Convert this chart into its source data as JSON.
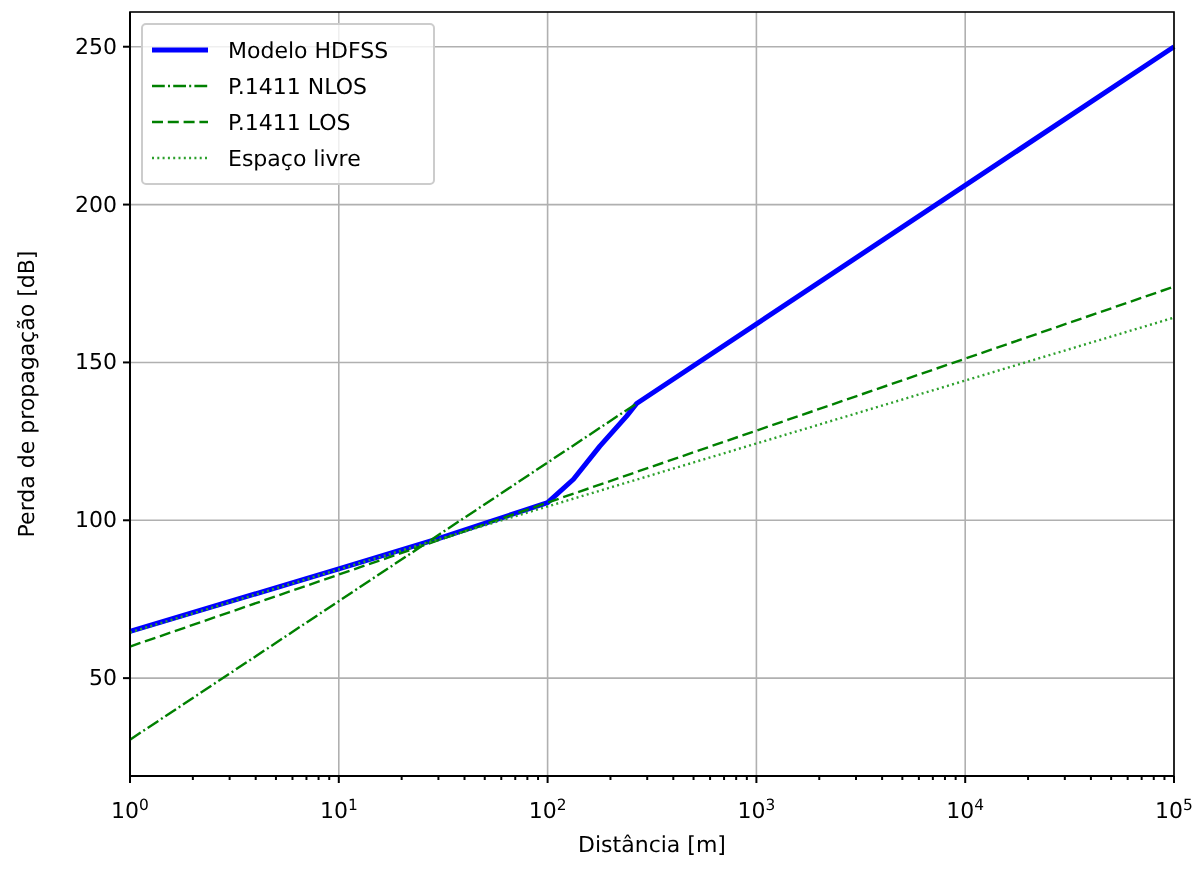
{
  "chart_data": {
    "type": "line",
    "xlabel": "Distância [m]",
    "ylabel": "Perda de propagação [dB]",
    "log": "x",
    "xlim": [
      1,
      100000
    ],
    "ylim": [
      19,
      261
    ],
    "xticks": [
      {
        "value": 1,
        "label": "10$^{0}$"
      },
      {
        "value": 2,
        "label": null
      },
      {
        "value": 3,
        "label": null
      },
      {
        "value": 4,
        "label": null
      },
      {
        "value": 5,
        "label": null
      },
      {
        "value": 6,
        "label": null
      },
      {
        "value": 7,
        "label": null
      },
      {
        "value": 8,
        "label": null
      },
      {
        "value": 9,
        "label": null
      },
      {
        "value": 10,
        "label": "10$^{1}$"
      },
      {
        "value": 20,
        "label": null
      },
      {
        "value": 30,
        "label": null
      },
      {
        "value": 40,
        "label": null
      },
      {
        "value": 50,
        "label": null
      },
      {
        "value": 60,
        "label": null
      },
      {
        "value": 70,
        "label": null
      },
      {
        "value": 80,
        "label": null
      },
      {
        "value": 90,
        "label": null
      },
      {
        "value": 100,
        "label": "10$^{2}$"
      },
      {
        "value": 200,
        "label": null
      },
      {
        "value": 300,
        "label": null
      },
      {
        "value": 400,
        "label": null
      },
      {
        "value": 500,
        "label": null
      },
      {
        "value": 600,
        "label": null
      },
      {
        "value": 700,
        "label": null
      },
      {
        "value": 800,
        "label": null
      },
      {
        "value": 900,
        "label": null
      },
      {
        "value": 1000,
        "label": "10$^{3}$"
      },
      {
        "value": 2000,
        "label": null
      },
      {
        "value": 3000,
        "label": null
      },
      {
        "value": 4000,
        "label": null
      },
      {
        "value": 5000,
        "label": null
      },
      {
        "value": 6000,
        "label": null
      },
      {
        "value": 7000,
        "label": null
      },
      {
        "value": 8000,
        "label": null
      },
      {
        "value": 9000,
        "label": null
      },
      {
        "value": 10000,
        "label": "10$^{4}$"
      },
      {
        "value": 20000,
        "label": null
      },
      {
        "value": 30000,
        "label": null
      },
      {
        "value": 40000,
        "label": null
      },
      {
        "value": 50000,
        "label": null
      },
      {
        "value": 60000,
        "label": null
      },
      {
        "value": 70000,
        "label": null
      },
      {
        "value": 80000,
        "label": null
      },
      {
        "value": 90000,
        "label": null
      },
      {
        "value": 100000,
        "label": "10$^{5}$"
      }
    ],
    "yticks": [
      50,
      100,
      150,
      200,
      250
    ],
    "grid": true,
    "legend": "top left",
    "series": [
      {
        "name": "Modelo HDFSS",
        "color": "#0000ff",
        "line_style": "solid",
        "x": [
          1,
          10,
          30,
          50,
          100,
          133,
          178,
          239,
          267,
          100000
        ],
        "values": [
          64.8,
          84.6,
          94.2,
          99,
          105.6,
          113,
          123.5,
          133,
          137,
          250
        ]
      },
      {
        "name": "P.1411 NLOS",
        "color": "#008000",
        "line_style": "dashdot",
        "x": [
          1,
          267
        ],
        "values": [
          30.5,
          137
        ]
      },
      {
        "name": "P.1411 LOS",
        "color": "#008000",
        "line_style": "dashed",
        "x": [
          1,
          100000
        ],
        "values": [
          60,
          174
        ]
      },
      {
        "name": "Espaço livre",
        "color": "#2ca02c",
        "line_style": "dotted",
        "x": [
          1,
          100000
        ],
        "values": [
          64.5,
          164.2
        ]
      }
    ]
  }
}
